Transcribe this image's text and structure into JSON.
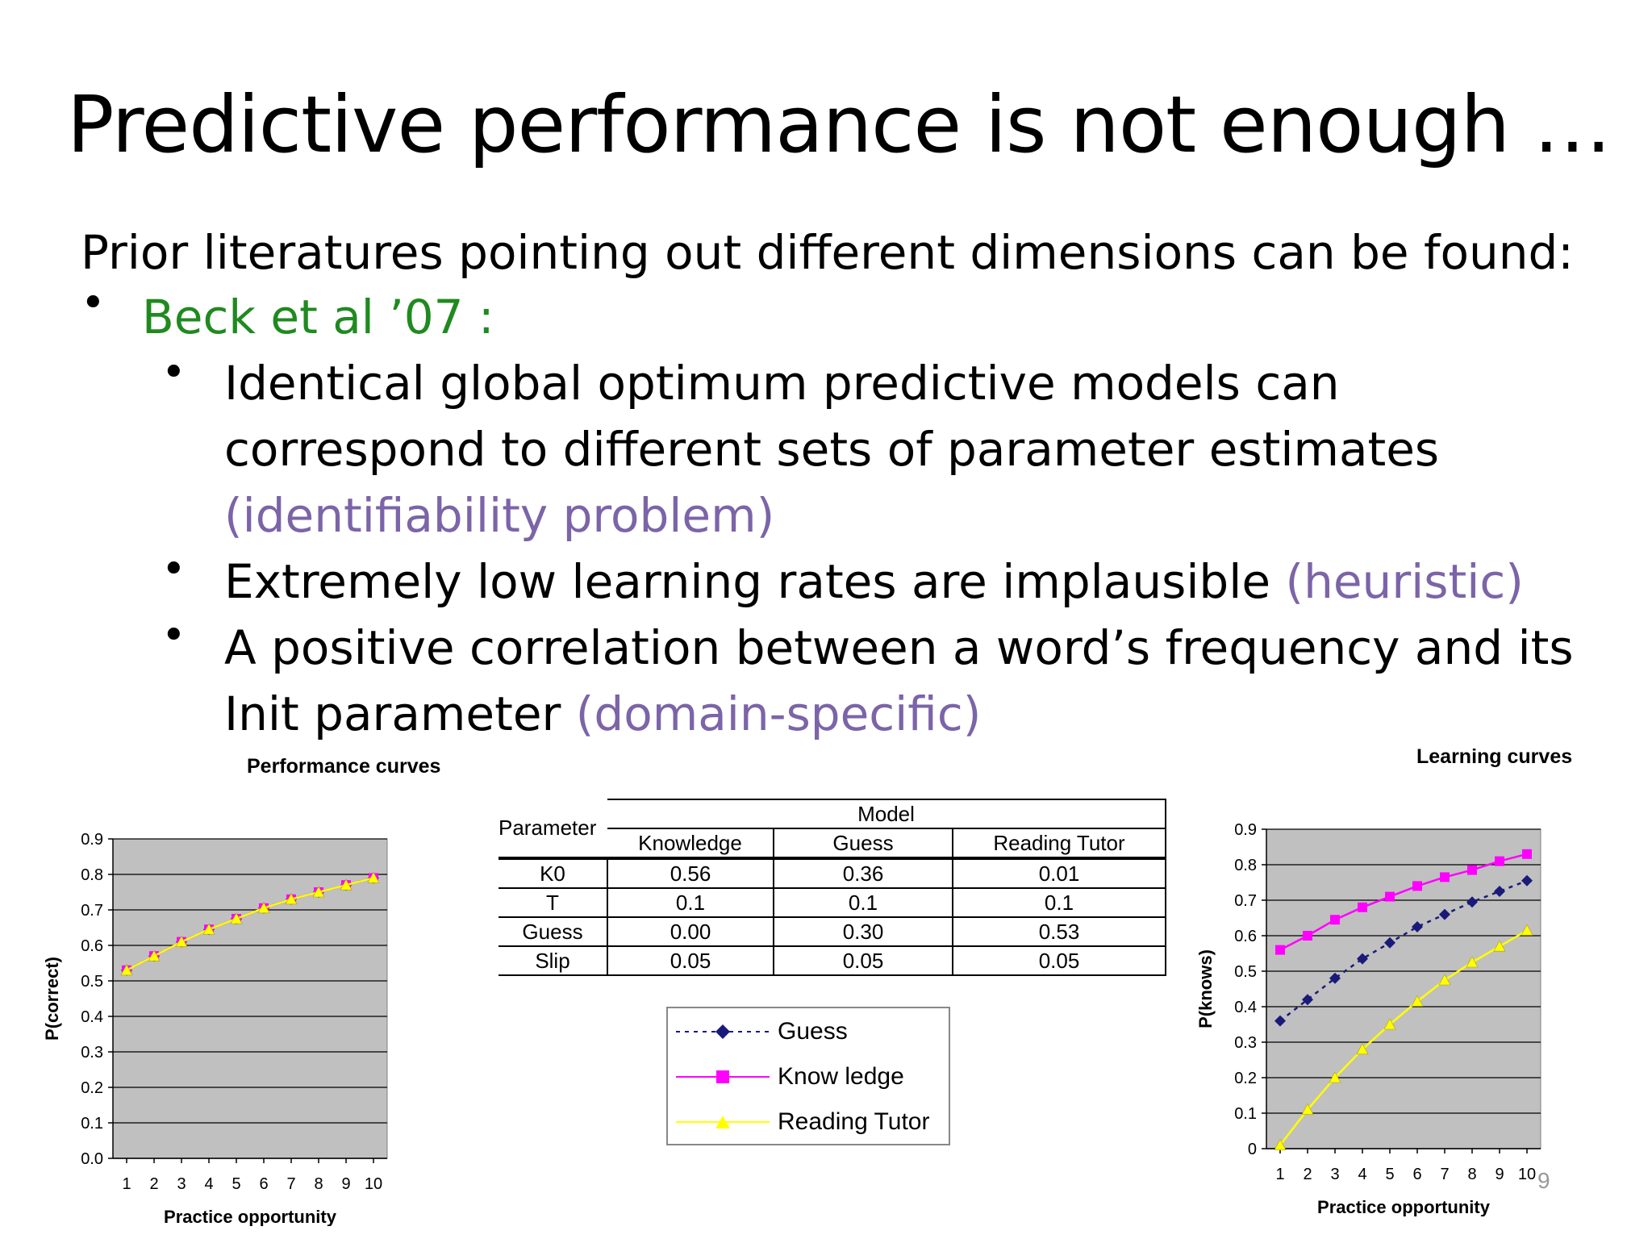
{
  "slide": {
    "title": "Predictive performance is not enough …",
    "intro": "Prior literatures pointing out different dimensions can be found:",
    "bullet_main": "Beck et al ’07 :",
    "sub1_line1": "Identical global optimum predictive models can",
    "sub1_line2": "correspond to different sets of parameter estimates",
    "sub1_tag": "(identifiability problem)",
    "sub2_text": "Extremely low learning rates are implausible ",
    "sub2_tag": "(heuristic)",
    "sub3_line1": "A positive correlation between a word’s frequency and its",
    "sub3_text": "Init parameter ",
    "sub3_tag": "(domain-specific)",
    "bullet_char": "•",
    "page_number": "9"
  },
  "colors": {
    "title_text": "#000000",
    "green_text": "#1f8a1f",
    "purple_tag": "#7b64a8",
    "plot_bg": "#c0c0c0",
    "guess": "#1a1a7a",
    "knowledge": "#ff00ff",
    "reading_tutor": "#ffff00"
  },
  "table": {
    "parameter_header": "Parameter",
    "model_header": "Model",
    "columns": [
      "Knowledge",
      "Guess",
      "Reading Tutor"
    ],
    "rows": [
      {
        "param": "K0",
        "values": [
          "0.56",
          "0.36",
          "0.01"
        ]
      },
      {
        "param": "T",
        "values": [
          "0.1",
          "0.1",
          "0.1"
        ]
      },
      {
        "param": "Guess",
        "values": [
          "0.00",
          "0.30",
          "0.53"
        ]
      },
      {
        "param": "Slip",
        "values": [
          "0.05",
          "0.05",
          "0.05"
        ]
      }
    ]
  },
  "legend": {
    "items": [
      {
        "label": "Guess",
        "marker": "diamond",
        "style": "dotted",
        "color": "#1a1a7a"
      },
      {
        "label": "Know ledge",
        "marker": "square",
        "style": "solid",
        "color": "#ff00ff"
      },
      {
        "label": "Reading Tutor",
        "marker": "triangle",
        "style": "solid",
        "color": "#ffff00"
      }
    ]
  },
  "chart_data": [
    {
      "type": "line",
      "title": "Performance curves",
      "xlabel": "Practice opportunity",
      "ylabel": "P(correct)",
      "x": [
        1,
        2,
        3,
        4,
        5,
        6,
        7,
        8,
        9,
        10
      ],
      "ylim": [
        0,
        0.9
      ],
      "yticks": [
        "0.0",
        "0.1",
        "0.2",
        "0.3",
        "0.4",
        "0.5",
        "0.6",
        "0.7",
        "0.8",
        "0.9"
      ],
      "grid": true,
      "series": [
        {
          "name": "Guess",
          "color": "#1a1a7a",
          "marker": "diamond",
          "dash": true,
          "values": [
            0.53,
            0.57,
            0.61,
            0.645,
            0.675,
            0.705,
            0.73,
            0.75,
            0.77,
            0.79
          ]
        },
        {
          "name": "Know ledge",
          "color": "#ff00ff",
          "marker": "square",
          "dash": false,
          "values": [
            0.53,
            0.57,
            0.61,
            0.645,
            0.675,
            0.705,
            0.73,
            0.75,
            0.77,
            0.79
          ]
        },
        {
          "name": "Reading Tutor",
          "color": "#ffff00",
          "marker": "triangle",
          "dash": false,
          "values": [
            0.53,
            0.57,
            0.61,
            0.645,
            0.675,
            0.705,
            0.73,
            0.75,
            0.77,
            0.79
          ]
        }
      ]
    },
    {
      "type": "line",
      "title": "Learning curves",
      "xlabel": "Practice opportunity",
      "ylabel": "P(knows)",
      "x": [
        1,
        2,
        3,
        4,
        5,
        6,
        7,
        8,
        9,
        10
      ],
      "ylim": [
        0,
        0.9
      ],
      "yticks": [
        "0",
        "0.1",
        "0.2",
        "0.3",
        "0.4",
        "0.5",
        "0.6",
        "0.7",
        "0.8",
        "0.9"
      ],
      "grid": true,
      "series": [
        {
          "name": "Guess",
          "color": "#1a1a7a",
          "marker": "diamond",
          "dash": true,
          "values": [
            0.36,
            0.42,
            0.48,
            0.535,
            0.58,
            0.625,
            0.66,
            0.695,
            0.725,
            0.755
          ]
        },
        {
          "name": "Know ledge",
          "color": "#ff00ff",
          "marker": "square",
          "dash": false,
          "values": [
            0.56,
            0.6,
            0.645,
            0.68,
            0.71,
            0.74,
            0.765,
            0.785,
            0.81,
            0.83
          ]
        },
        {
          "name": "Reading Tutor",
          "color": "#ffff00",
          "marker": "triangle",
          "dash": false,
          "values": [
            0.01,
            0.11,
            0.2,
            0.28,
            0.35,
            0.415,
            0.475,
            0.525,
            0.57,
            0.615
          ]
        }
      ]
    }
  ]
}
